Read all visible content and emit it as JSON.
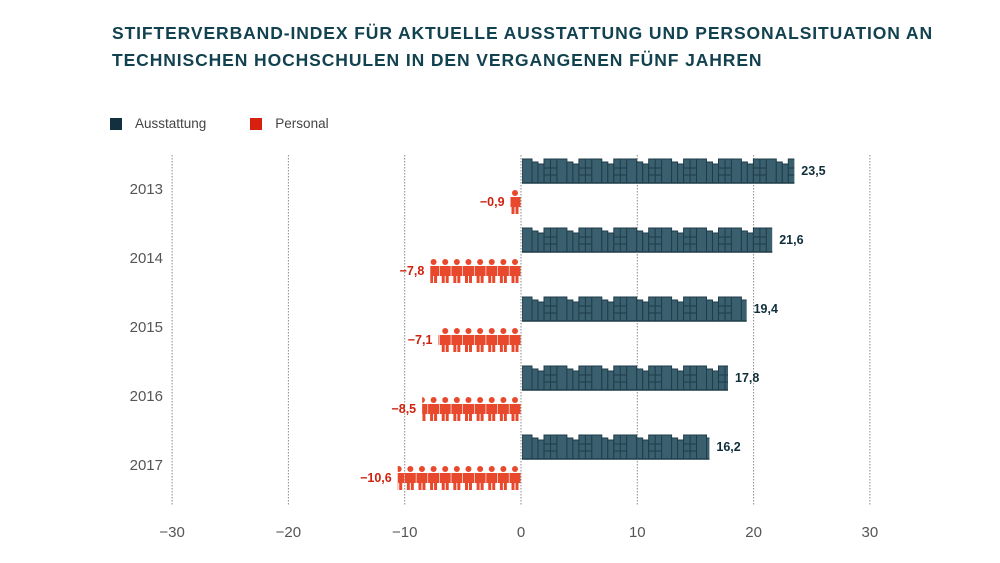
{
  "chart_data": {
    "type": "bar",
    "orientation": "horizontal",
    "title": "Stifterverband-Index für aktuelle Ausstattung und Personalsituation an technischen Hochschulen in den vergangenen fünf Jahren",
    "categories": [
      "2013",
      "2014",
      "2015",
      "2016",
      "2017"
    ],
    "series": [
      {
        "name": "Ausstattung",
        "color": "#3a5f6e",
        "legend_color": "#12303d",
        "value_labels": [
          "23,5",
          "21,6",
          "19,4",
          "17,8",
          "16,2"
        ],
        "values": [
          23.5,
          21.6,
          19.4,
          17.8,
          16.2
        ]
      },
      {
        "name": "Personal",
        "color": "#e8482c",
        "legend_color": "#d8200e",
        "label_color": "#d0200e",
        "value_labels": [
          "−0,9",
          "−7,8",
          "−7,1",
          "−8,5",
          "−10,6"
        ],
        "values": [
          -0.9,
          -7.8,
          -7.1,
          -8.5,
          -10.6
        ]
      }
    ],
    "xlim": [
      -30,
      30
    ],
    "xticks": [
      -30,
      -20,
      -10,
      0,
      10,
      20,
      30
    ],
    "xtick_labels": [
      "−30",
      "−20",
      "−10",
      "0",
      "10",
      "20",
      "30"
    ],
    "xlabel": "",
    "ylabel": "",
    "grid": "vertical dotted",
    "legend_position": "top-left",
    "marks": {
      "Ausstattung": "building-icons",
      "Personal": "person-icons"
    }
  }
}
